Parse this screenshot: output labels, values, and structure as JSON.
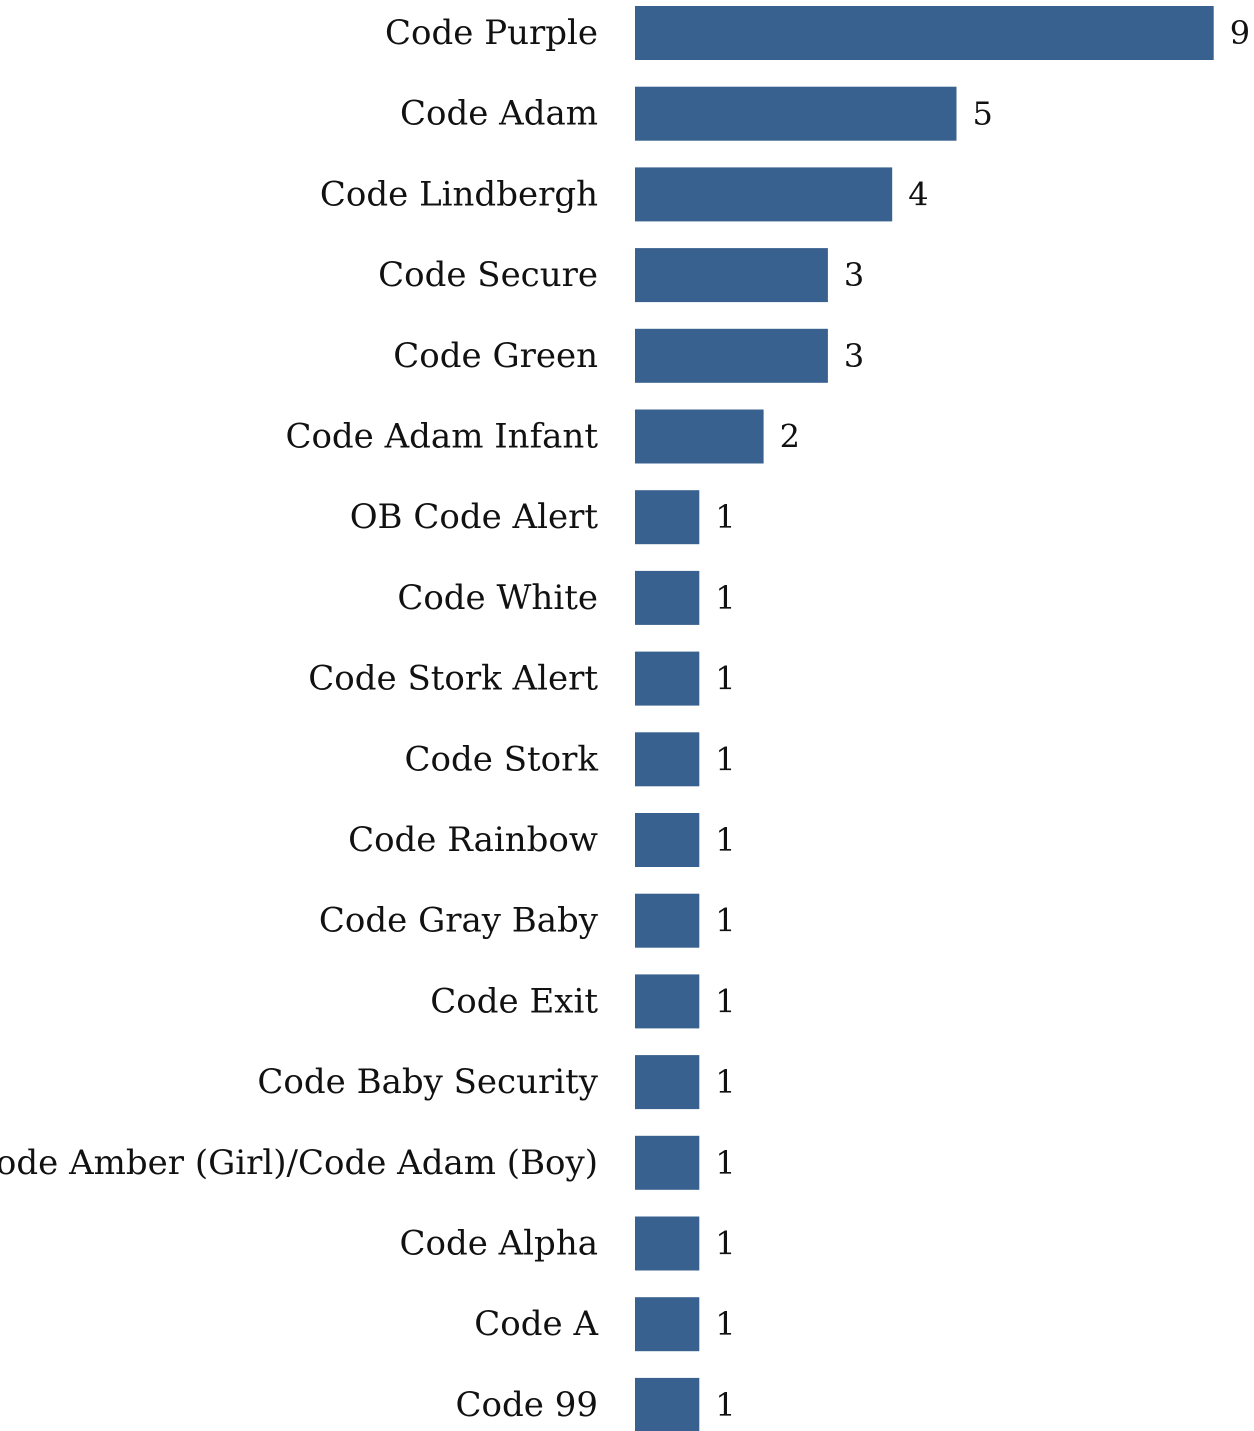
{
  "chart_data": {
    "type": "bar",
    "orientation": "horizontal",
    "categories": [
      "Code Purple",
      "Code Adam",
      "Code Lindbergh",
      "Code Secure",
      "Code Green",
      "Code Adam Infant",
      "OB Code Alert",
      "Code White",
      "Code Stork Alert",
      "Code Stork",
      "Code Rainbow",
      "Code Gray Baby",
      "Code Exit",
      "Code Baby Security",
      "Code Amber (Girl)/Code Adam (Boy)",
      "Code Alpha",
      "Code A",
      "Code 99"
    ],
    "values": [
      9,
      5,
      4,
      3,
      3,
      2,
      1,
      1,
      1,
      1,
      1,
      1,
      1,
      1,
      1,
      1,
      1,
      1
    ],
    "data_labels": [
      "9",
      "5",
      "4",
      "3",
      "3",
      "2",
      "1",
      "1",
      "1",
      "1",
      "1",
      "1",
      "1",
      "1",
      "1",
      "1",
      "1",
      "1"
    ],
    "title": "",
    "xlabel": "",
    "ylabel": "",
    "xlim": [
      0,
      9
    ],
    "grid": false,
    "legend": "none",
    "bar_color": "#38618f"
  }
}
